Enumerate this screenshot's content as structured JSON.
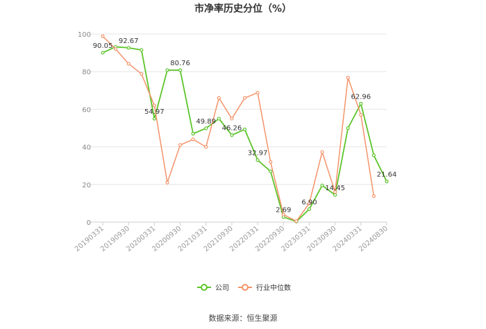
{
  "chart_data": {
    "type": "line",
    "title": "市净率历史分位（%）",
    "ylim": [
      0,
      100
    ],
    "yticks": [
      "0",
      "20",
      "40",
      "60",
      "80",
      "100"
    ],
    "xticks": [
      "20190331",
      "20190930",
      "20200331",
      "20200930",
      "20210331",
      "20210930",
      "20220331",
      "20220930",
      "20230331",
      "20230930",
      "20240331",
      "20240830"
    ],
    "grid": "horizontal",
    "legend_position": "bottom",
    "series": [
      {
        "name": "公司",
        "color": "#5cc42a",
        "values": [
          90.05,
          93.2,
          92.67,
          91.5,
          54.97,
          80.8,
          80.76,
          47.0,
          49.89,
          55.0,
          46.26,
          49.3,
          32.97,
          27.0,
          2.69,
          0.3,
          6.9,
          19.5,
          14.45,
          50.0,
          62.96,
          35.5,
          21.64
        ]
      },
      {
        "name": "行业中位数",
        "color": "#f4936a",
        "values": [
          98.8,
          92.0,
          84.2,
          78.8,
          62.0,
          21.0,
          41.0,
          44.0,
          40.0,
          66.0,
          55.0,
          66.0,
          68.8,
          32.0,
          4.0,
          0.5,
          10.0,
          37.3,
          16.0,
          76.8,
          57.0,
          13.8,
          null
        ]
      }
    ],
    "data_labels": [
      {
        "series": 0,
        "index": 0,
        "text": "90.05"
      },
      {
        "series": 0,
        "index": 2,
        "text": "92.67"
      },
      {
        "series": 0,
        "index": 4,
        "text": "54.97"
      },
      {
        "series": 0,
        "index": 6,
        "text": "80.76"
      },
      {
        "series": 0,
        "index": 8,
        "text": "49.89"
      },
      {
        "series": 0,
        "index": 10,
        "text": "46.26"
      },
      {
        "series": 0,
        "index": 12,
        "text": "32.97"
      },
      {
        "series": 0,
        "index": 14,
        "text": "2.69"
      },
      {
        "series": 0,
        "index": 16,
        "text": "6.90"
      },
      {
        "series": 0,
        "index": 18,
        "text": "14.45"
      },
      {
        "series": 0,
        "index": 20,
        "text": "62.96"
      },
      {
        "series": 0,
        "index": 22,
        "text": "21.64"
      }
    ]
  },
  "source": "数据来源：恒生聚源"
}
